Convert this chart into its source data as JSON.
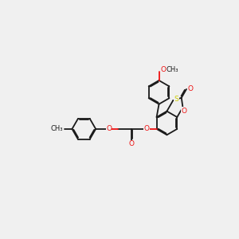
{
  "bg_color": "#f0f0f0",
  "bond_color": "#1a1a1a",
  "o_color": "#ee1111",
  "s_color": "#cccc00",
  "figsize": [
    3.0,
    3.0
  ],
  "dpi": 100,
  "lw": 1.3,
  "fs": 6.5,
  "ring_r": 0.5,
  "dbl_off": 0.04,
  "dbl_shrink": 0.06,
  "xlim": [
    0,
    10
  ],
  "ylim": [
    0,
    10
  ]
}
